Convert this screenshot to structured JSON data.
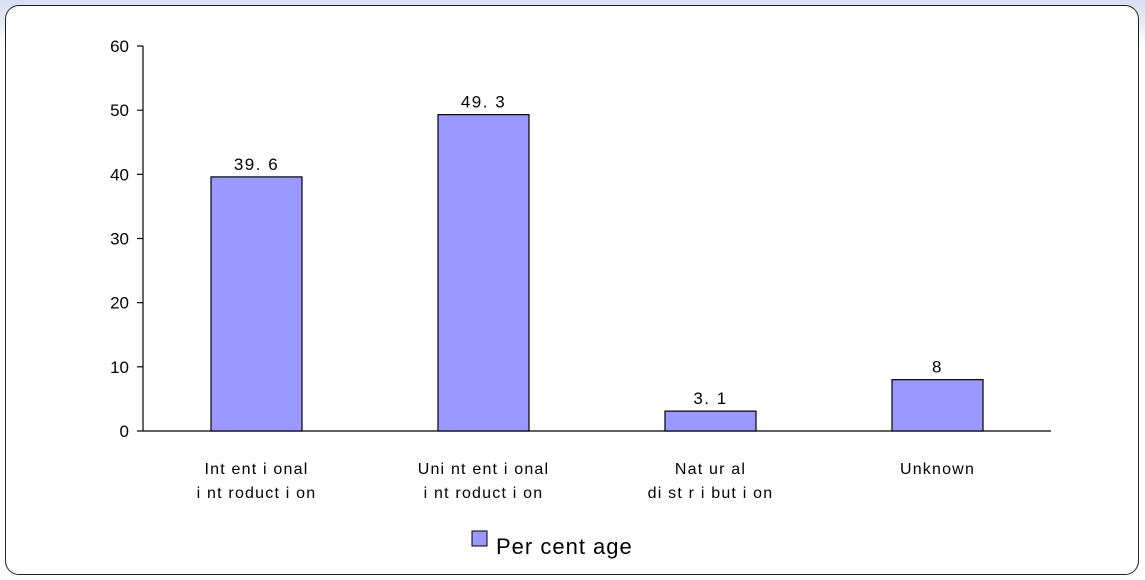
{
  "chart_data": {
    "type": "bar",
    "categories": [
      [
        "Int ent i onal",
        "i nt roduct i on"
      ],
      [
        "Uni nt ent i onal",
        "i nt roduct i on"
      ],
      [
        "Nat ur al",
        "di st r i but i on"
      ],
      [
        "Unknown"
      ]
    ],
    "series": [
      {
        "name": "Per cent age",
        "values": [
          39.6,
          49.3,
          3.1,
          8
        ],
        "labels": [
          "39. 6",
          "49. 3",
          "3. 1",
          "8"
        ],
        "color": "#9999ff"
      }
    ],
    "ylim": [
      0,
      60
    ],
    "yticks": [
      0,
      10,
      20,
      30,
      40,
      50,
      60
    ],
    "grid": false,
    "legend": "bottom-center"
  }
}
